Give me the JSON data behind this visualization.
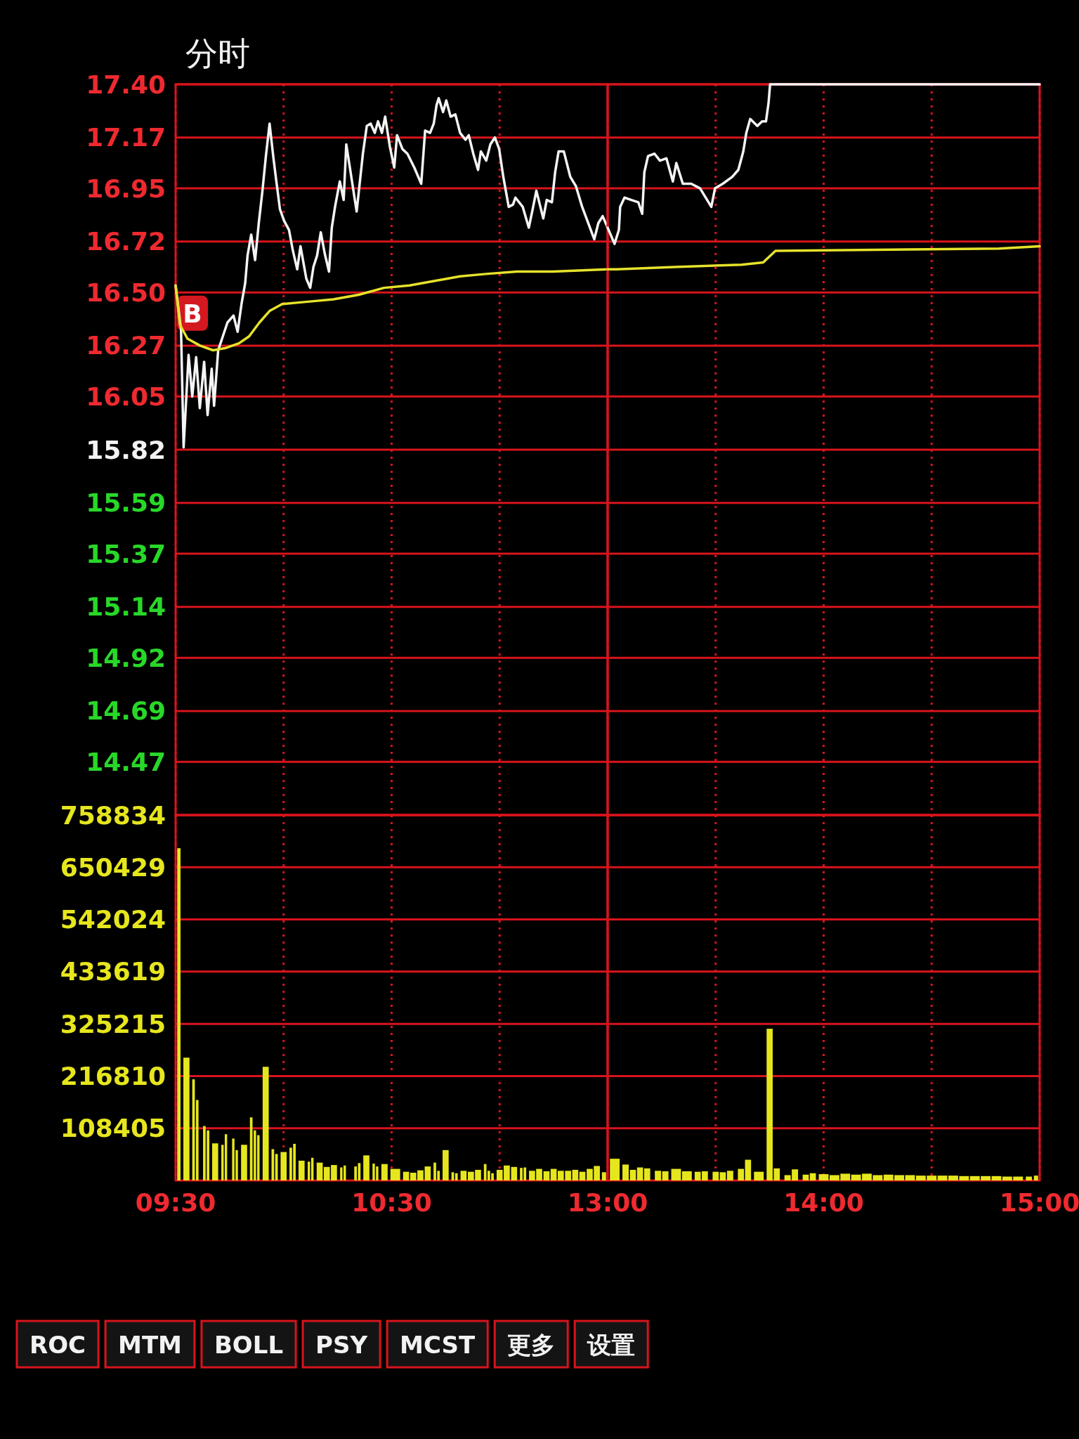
{
  "chart_data": [
    {
      "type": "line",
      "title": "分时",
      "xlim": [
        9.5,
        11.5
      ],
      "xticks": [
        9.5,
        10,
        10.5,
        11
      ],
      "ylim": [
        14.24,
        17.4
      ],
      "yticks": [
        {
          "value": 17.4,
          "label": "17.40"
        },
        17.17,
        16.95,
        16.72,
        {
          "value": 16.5,
          "label": "16.50"
        },
        16.27,
        16.05,
        15.82,
        15.59,
        15.37,
        15.14,
        14.92,
        14.69,
        14.47
      ],
      "tick_labels": "y",
      "grid": true,
      "annotations": [
        {
          "text": "B",
          "x": 9.5,
          "y": 16.41
        }
      ],
      "series": [
        {
          "color": "#f4f4f4",
          "x": [
            9.5,
            9.525,
            9.537,
            9.56,
            9.577,
            9.595,
            9.612,
            9.632,
            9.648,
            9.667,
            9.678,
            9.697,
            9.715,
            9.74,
            9.768,
            9.787,
            9.805,
            9.822,
            9.833,
            9.85,
            9.868,
            9.885,
            9.902,
            9.918,
            9.935,
            9.953,
            9.965,
            9.983,
            10.002,
            10.025,
            10.043,
            10.063,
            10.078,
            10.105,
            10.123,
            10.138,
            10.155,
            10.172,
            10.19,
            10.21,
            10.223,
            10.238,
            10.26,
            10.278,
            10.29,
            10.31,
            10.338,
            10.352,
            10.367,
            10.385,
            10.403,
            10.422,
            10.437,
            10.455,
            10.47,
            10.492,
            10.512,
            10.525,
            10.55,
            10.573,
            10.605,
            10.637,
            10.648,
            10.655,
            10.678,
            10.695,
            10.708,
            10.718,
            10.738,
            10.753,
            10.773,
            10.795,
            10.817,
            10.842,
            10.857,
            10.878,
            10.9,
            10.913,
            10.938,
            10.957,
            10.978,
            10.998,
            11.017,
            11.042,
            11.062,
            11.073,
            11.107,
            11.135,
            11.153,
            11.17,
            11.202,
            11.218,
            11.242,
            11.257,
            11.273,
            11.297,
            11.327,
            11.353,
            11.382,
            11.41,
            11.438,
            11.457,
            11.477,
            11.5
          ],
          "values": [
            16.53,
            16.34,
            15.83,
            16.23,
            16.05,
            16.22,
            16.0,
            16.2,
            15.97,
            16.17,
            16.01,
            16.25,
            16.3,
            16.37,
            16.4,
            16.33,
            16.45,
            16.54,
            16.66,
            16.75,
            16.64,
            16.8,
            16.94,
            17.09,
            17.23,
            17.08,
            16.99,
            16.86,
            16.81,
            16.77,
            16.68,
            16.6,
            16.7,
            16.56,
            16.52,
            16.61,
            16.66,
            16.76,
            16.67,
            16.59,
            16.78,
            16.87,
            16.98,
            16.9,
            17.14,
            17.02,
            16.85,
            16.97,
            17.1,
            17.22,
            17.23,
            17.19,
            17.24,
            17.19,
            17.26,
            17.13,
            17.04,
            17.18,
            17.12,
            17.1,
            17.04,
            16.97,
            17.11,
            17.2,
            17.19,
            17.23,
            17.31,
            17.34,
            17.28,
            17.33,
            17.26,
            17.27,
            17.19,
            17.16,
            17.18,
            17.1,
            17.03,
            17.11,
            17.07,
            17.14,
            17.17,
            17.12,
            17.0,
            16.87,
            16.88,
            16.91,
            16.87,
            16.78,
            16.86,
            16.94,
            16.82,
            16.9,
            16.89,
            17.02,
            17.11,
            17.11,
            17.0,
            16.96,
            16.87,
            16.8,
            16.73,
            16.8,
            16.83,
            16.78
          ]
        },
        {
          "color": "#e6e22a",
          "x": [
            9.5,
            9.52,
            9.555,
            9.613,
            9.673,
            9.733,
            9.793,
            9.84,
            9.888,
            9.935,
            9.993,
            10.112,
            10.23,
            10.348,
            10.465,
            10.583,
            10.7,
            10.818,
            10.937,
            11.08,
            11.247,
            11.5
          ],
          "values": [
            16.53,
            16.36,
            16.3,
            16.27,
            16.25,
            16.26,
            16.28,
            16.31,
            16.37,
            16.42,
            16.45,
            16.46,
            16.47,
            16.49,
            16.52,
            16.53,
            16.55,
            16.57,
            16.58,
            16.59,
            16.59,
            16.6
          ]
        }
      ]
    },
    {
      "type": "line",
      "xlim": [
        13,
        15
      ],
      "xticks": [
        13,
        13.5,
        14,
        14.5,
        15
      ],
      "ylim": [
        14.24,
        17.4
      ],
      "yticks": [
        17.4,
        17.17,
        16.95,
        16.72,
        16.5,
        16.27,
        16.05,
        15.82,
        15.59,
        15.37,
        15.14,
        14.92,
        14.69,
        14.47
      ],
      "tick_labels": false,
      "grid": true,
      "series": [
        {
          "color": "#f4f4f4",
          "x": [
            13.0,
            13.032,
            13.052,
            13.058,
            13.078,
            13.11,
            13.142,
            13.16,
            13.17,
            13.187,
            13.217,
            13.242,
            13.272,
            13.302,
            13.318,
            13.348,
            13.387,
            13.428,
            13.48,
            13.497,
            13.533,
            13.577,
            13.605,
            13.628,
            13.642,
            13.66,
            13.693,
            13.715,
            13.733,
            13.745,
            13.752,
            15.0
          ],
          "values": [
            16.78,
            16.71,
            16.77,
            16.87,
            16.91,
            16.9,
            16.89,
            16.84,
            17.02,
            17.09,
            17.1,
            17.07,
            17.08,
            16.98,
            17.06,
            16.97,
            16.97,
            16.95,
            16.87,
            16.95,
            16.97,
            17.0,
            17.03,
            17.11,
            17.19,
            17.25,
            17.22,
            17.24,
            17.24,
            17.32,
            17.4,
            17.4
          ]
        },
        {
          "color": "#e6e22a",
          "x": [
            13.0,
            13.042,
            13.31,
            13.62,
            13.72,
            13.777,
            14.812,
            15.0
          ],
          "values": [
            16.6,
            16.6,
            16.61,
            16.62,
            16.63,
            16.68,
            16.69,
            16.7
          ]
        }
      ]
    },
    {
      "type": "bar",
      "xlim": [
        9.5,
        11.5
      ],
      "xticks": [
        {
          "value": 9.5,
          "label": "09:30"
        },
        {
          "value": 10,
          "label": null
        },
        {
          "value": 10.5,
          "label": "10:30"
        },
        {
          "value": 11,
          "label": null
        }
      ],
      "ylim": [
        0,
        758834
      ],
      "yticks": [
        108405,
        216810,
        325215,
        433619,
        542024,
        650429,
        758834
      ],
      "grid": true,
      "color": "#e6e61e",
      "x": [
        9.515,
        9.55,
        9.583,
        9.6,
        9.633,
        9.65,
        9.683,
        9.717,
        9.733,
        9.767,
        9.783,
        9.817,
        9.85,
        9.867,
        9.883,
        9.917,
        9.95,
        9.967,
        10.0,
        10.033,
        10.05,
        10.083,
        10.117,
        10.133,
        10.167,
        10.2,
        10.233,
        10.267,
        10.283,
        10.333,
        10.35,
        10.383,
        10.417,
        10.433,
        10.467,
        10.517,
        10.567,
        10.6,
        10.633,
        10.667,
        10.7,
        10.717,
        10.75,
        10.783,
        10.8,
        10.833,
        10.867,
        10.9,
        10.933,
        10.95,
        10.967,
        11.0,
        11.033,
        11.067,
        11.1,
        11.117,
        11.15,
        11.183,
        11.217,
        11.25,
        11.283,
        11.317,
        11.35,
        11.383,
        11.417,
        11.45,
        11.483
      ],
      "values": [
        690000,
        255000,
        210000,
        167000,
        113000,
        104000,
        77000,
        74000,
        96000,
        87000,
        63000,
        74000,
        131000,
        104000,
        94000,
        236000,
        65000,
        55000,
        59000,
        68000,
        76000,
        41000,
        39000,
        47000,
        37000,
        28000,
        32000,
        27000,
        31000,
        29000,
        36000,
        52000,
        35000,
        29000,
        34000,
        24000,
        18000,
        16000,
        21000,
        29000,
        37000,
        20000,
        63000,
        17000,
        15000,
        20000,
        18000,
        22000,
        34000,
        20000,
        15000,
        22000,
        31000,
        28000,
        26000,
        27000,
        20000,
        24000,
        19000,
        24000,
        20000,
        20000,
        22000,
        18000,
        24000,
        30000,
        17000
      ],
      "annotations": [
        "ROC",
        "MTM",
        "BOLL",
        "PSY",
        "MCST",
        "更多",
        "设置"
      ]
    },
    {
      "type": "bar",
      "xlim": [
        13,
        15
      ],
      "xticks": [
        {
          "value": 13,
          "label": "13:00"
        },
        {
          "value": 13.5,
          "label": null
        },
        {
          "value": 14,
          "label": "14:00"
        },
        {
          "value": 14.5,
          "label": null
        },
        {
          "value": 15,
          "label": "15:00"
        }
      ],
      "ylim": [
        0,
        758834
      ],
      "yticks": [
        108405,
        216810,
        325215,
        433619,
        542024,
        650429,
        758834
      ],
      "tick_labels": "x",
      "grid": true,
      "color": "#e6e61e",
      "x": [
        13.033,
        13.083,
        13.117,
        13.15,
        13.183,
        13.233,
        13.267,
        13.317,
        13.367,
        13.417,
        13.45,
        13.5,
        13.533,
        13.567,
        13.617,
        13.65,
        13.7,
        13.75,
        13.783,
        13.833,
        13.867,
        13.917,
        13.95,
        14.0,
        14.05,
        14.1,
        14.15,
        14.2,
        14.25,
        14.3,
        14.35,
        14.4,
        14.45,
        14.5,
        14.55,
        14.6,
        14.65,
        14.7,
        14.75,
        14.8,
        14.85,
        14.9,
        14.95,
        14.983
      ],
      "values": [
        45000,
        33000,
        22000,
        27000,
        25000,
        20000,
        19000,
        24000,
        19000,
        18000,
        19000,
        18000,
        17000,
        20000,
        24000,
        43000,
        18000,
        315000,
        25000,
        11000,
        23000,
        12000,
        15000,
        13000,
        11000,
        14000,
        12000,
        14000,
        11000,
        12000,
        11000,
        11000,
        10000,
        10000,
        10000,
        10000,
        9000,
        9000,
        9000,
        9000,
        8000,
        8000,
        8000,
        10000
      ]
    }
  ]
}
